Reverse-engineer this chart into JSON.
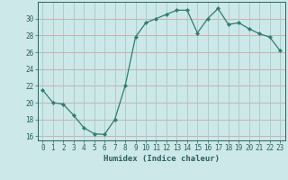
{
  "x": [
    0,
    1,
    2,
    3,
    4,
    5,
    6,
    7,
    8,
    9,
    10,
    11,
    12,
    13,
    14,
    15,
    16,
    17,
    18,
    19,
    20,
    21,
    22,
    23
  ],
  "y": [
    21.5,
    20.0,
    19.8,
    18.5,
    17.0,
    16.3,
    16.2,
    18.0,
    22.0,
    27.8,
    29.5,
    30.0,
    30.5,
    31.0,
    31.0,
    28.3,
    30.0,
    31.2,
    29.3,
    29.5,
    28.8,
    28.2,
    27.8,
    26.2
  ],
  "line_color": "#2e7d6e",
  "marker": "D",
  "marker_size": 2.2,
  "bg_color": "#cce8e8",
  "h_grid_color": "#c8a8a8",
  "v_grid_color": "#a8c8c8",
  "xlabel": "Humidex (Indice chaleur)",
  "ylim": [
    15.5,
    32
  ],
  "xlim": [
    -0.5,
    23.5
  ],
  "yticks": [
    16,
    18,
    20,
    22,
    24,
    26,
    28,
    30
  ],
  "xticks": [
    0,
    1,
    2,
    3,
    4,
    5,
    6,
    7,
    8,
    9,
    10,
    11,
    12,
    13,
    14,
    15,
    16,
    17,
    18,
    19,
    20,
    21,
    22,
    23
  ],
  "xtick_labels": [
    "0",
    "1",
    "2",
    "3",
    "4",
    "5",
    "6",
    "7",
    "8",
    "9",
    "10",
    "11",
    "12",
    "13",
    "14",
    "15",
    "16",
    "17",
    "18",
    "19",
    "20",
    "21",
    "22",
    "23"
  ],
  "font_color": "#2e6060",
  "tick_fontsize": 5.5,
  "label_fontsize": 6.5
}
